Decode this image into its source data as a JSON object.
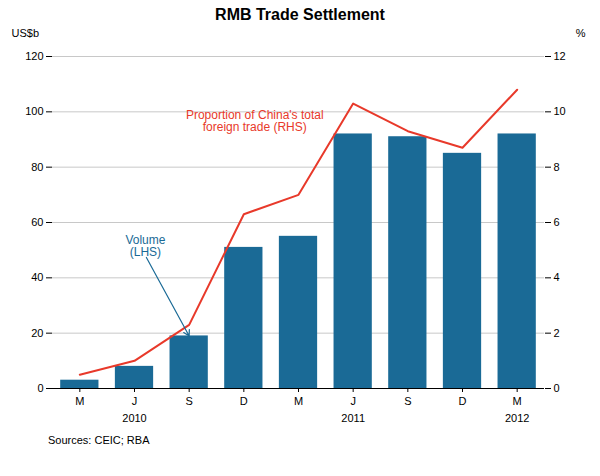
{
  "chart_data": {
    "type": "bar",
    "title": "RMB Trade Settlement",
    "source": "Sources: CEIC; RBA",
    "categories": [
      "M",
      "J",
      "S",
      "D",
      "M",
      "J",
      "S",
      "D",
      "M"
    ],
    "year_labels": [
      {
        "label": "2010",
        "index": 1
      },
      {
        "label": "2011",
        "index": 5
      },
      {
        "label": "2012",
        "index": 8
      }
    ],
    "series": [
      {
        "type": "bar",
        "color": "#1a6a96",
        "values": [
          3,
          8,
          19,
          51,
          55,
          92,
          91,
          85,
          92
        ]
      },
      {
        "type": "line",
        "axis": "y2",
        "color": "#e8392a",
        "values": [
          0.5,
          1.0,
          2.3,
          6.3,
          7.0,
          10.3,
          9.3,
          8.7,
          10.8
        ]
      }
    ],
    "ylabel": "US$b",
    "y2label": "%",
    "ylim": [
      0,
      120
    ],
    "yticks": [
      0,
      20,
      40,
      60,
      80,
      100,
      120
    ],
    "y2lim": [
      0,
      12
    ],
    "y2ticks": [
      0,
      2,
      4,
      6,
      8,
      10,
      12
    ],
    "grid": true,
    "annotations": [
      {
        "text": "Volume\n(LHS)",
        "x": 1.2,
        "y": 48,
        "arrow_x": 2,
        "arrow_y": 19,
        "color": "#1a6a96"
      },
      {
        "text": "Proportion of China's total\nforeign trade (RHS)",
        "x": 3.2,
        "y": 93,
        "color": "#e8392a"
      }
    ]
  }
}
